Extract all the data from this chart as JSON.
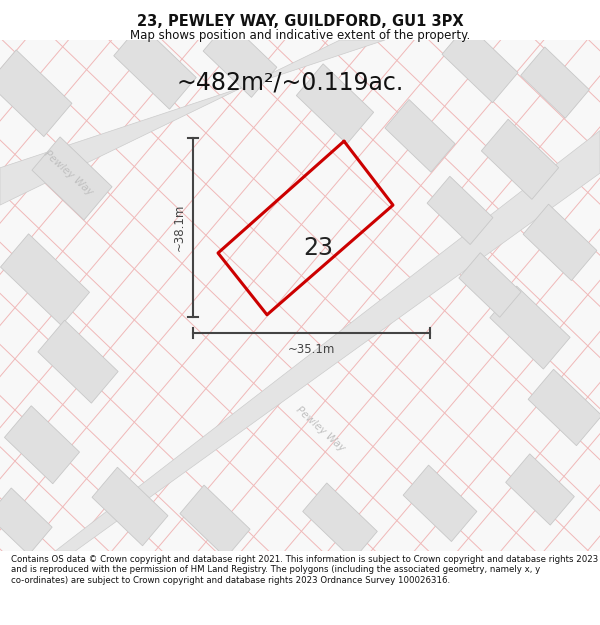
{
  "title_line1": "23, PEWLEY WAY, GUILDFORD, GU1 3PX",
  "title_line2": "Map shows position and indicative extent of the property.",
  "area_text": "~482m²/~0.119ac.",
  "label_number": "23",
  "dim_vertical": "~38.1m",
  "dim_horizontal": "~35.1m",
  "road_label": "Pewley Way",
  "footer_text": "Contains OS data © Crown copyright and database right 2021. This information is subject to Crown copyright and database rights 2023 and is reproduced with the permission of HM Land Registry. The polygons (including the associated geometry, namely x, y co-ordinates) are subject to Crown copyright and database rights 2023 Ordnance Survey 100026316.",
  "bg_color": "#f8f8f8",
  "plot_color": "#cc0000",
  "dim_color": "#444444",
  "pink_line_color": "#f0b8b8",
  "grey_block_color": "#e0e0e0",
  "grey_block_edge": "#c8c8c8",
  "road_fill": "#e8e8e8",
  "road_edge": "#d0d0d0",
  "road_text_color": "#c0c0c0"
}
